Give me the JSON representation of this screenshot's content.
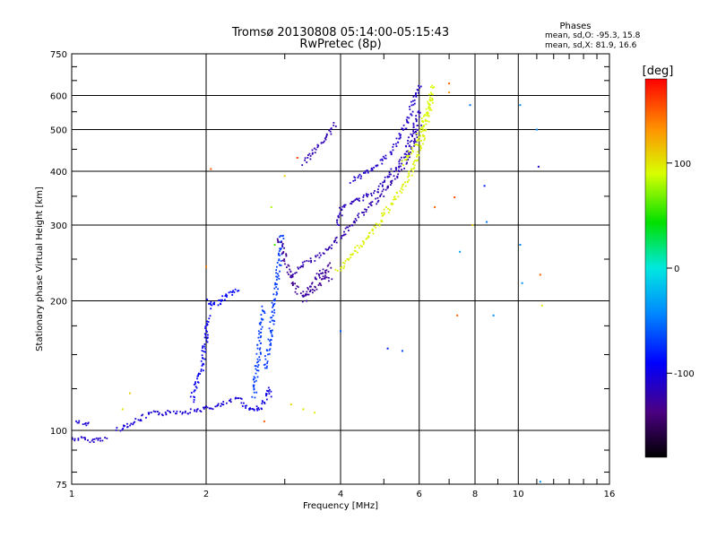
{
  "chart_data": {
    "type": "scatter",
    "title": "Tromsø 20130808 05:14:00-05:15:43",
    "subtitle": "RwPretec (8p)",
    "xlabel": "Frequency [MHz]",
    "ylabel": "Stationary phase Virtual Height [km]",
    "x_scale": "log",
    "y_scale": "log",
    "xlim": [
      1,
      16
    ],
    "ylim": [
      75,
      750
    ],
    "grid": true,
    "x_ticks": [
      1,
      2,
      4,
      6,
      8,
      10,
      16
    ],
    "y_ticks": [
      75,
      100,
      200,
      300,
      400,
      500,
      600,
      750
    ],
    "stats": {
      "title": "Phases",
      "line_o": "mean, sd,O: -95.3, 15.8",
      "line_x": "mean, sd,X: 81.9, 16.6"
    },
    "colorbar": {
      "label": "[deg]",
      "range": [
        -180,
        180
      ],
      "ticks": [
        100,
        0,
        -100
      ]
    },
    "series": [
      {
        "traces": [
          {
            "x": [
              1.0,
              1.05,
              1.1,
              1.15,
              1.2
            ],
            "y": [
              96,
              96,
              95,
              96,
              96
            ],
            "phase": -110
          },
          {
            "x": [
              1.02,
              1.06,
              1.1
            ],
            "y": [
              105,
              104,
              104
            ],
            "phase": -105
          },
          {
            "x": [
              1.25,
              1.3,
              1.35,
              1.4,
              1.45,
              1.5,
              1.6,
              1.7,
              1.8,
              1.9,
              2.0,
              2.1,
              2.2,
              2.3,
              2.4
            ],
            "y": [
              101,
              102,
              104,
              106,
              108,
              110,
              110,
              111,
              111,
              112,
              113,
              114,
              116,
              118,
              121
            ],
            "phase": -105
          },
          {
            "x": [
              2.4,
              2.45,
              2.5,
              2.55,
              2.6,
              2.65,
              2.7,
              2.75,
              2.8
            ],
            "y": [
              116,
              114,
              113,
              112,
              113,
              114,
              118,
              125,
              120
            ],
            "phase": -100
          },
          {
            "x": [
              1.85,
              1.88,
              1.92,
              1.95,
              1.97,
              1.98,
              2.0,
              2.02
            ],
            "y": [
              118,
              125,
              132,
              140,
              150,
              160,
              172,
              185
            ],
            "phase": -95
          },
          {
            "x": [
              2.02,
              2.05,
              2.08,
              2.12,
              2.16,
              2.2,
              2.25,
              2.3,
              2.35
            ],
            "y": [
              200,
              195,
              198,
              197,
              203,
              206,
              209,
              212,
              214
            ],
            "phase": -90
          },
          {
            "x": [
              2.55,
              2.57,
              2.6,
              2.62,
              2.65,
              2.68
            ],
            "y": [
              120,
              132,
              145,
              160,
              178,
              195
            ],
            "phase": -70
          },
          {
            "x": [
              2.7,
              2.75,
              2.8,
              2.85,
              2.9,
              2.95
            ],
            "y": [
              140,
              155,
              180,
              210,
              245,
              290
            ],
            "phase": -70
          },
          {
            "x": [
              2.9,
              3.0,
              3.1,
              3.2,
              3.3,
              3.4,
              3.5,
              3.6,
              3.7,
              3.8
            ],
            "y": [
              280,
              250,
              225,
              210,
              208,
              210,
              215,
              222,
              232,
              245
            ],
            "phase": -130
          },
          {
            "x": [
              3.1,
              3.2,
              3.4,
              3.6,
              3.8,
              4.0,
              4.2,
              4.4,
              4.6,
              4.8,
              5.0,
              5.2,
              5.4,
              5.6,
              5.8,
              6.0
            ],
            "y": [
              230,
              240,
              248,
              258,
              270,
              285,
              300,
              315,
              330,
              345,
              360,
              380,
              400,
              425,
              460,
              520
            ],
            "phase": -120
          },
          {
            "x": [
              3.9,
              4.0,
              4.2,
              4.4,
              4.6,
              4.8,
              5.0,
              5.2,
              5.4,
              5.6,
              5.8,
              6.0
            ],
            "y": [
              300,
              330,
              340,
              345,
              355,
              360,
              380,
              400,
              420,
              450,
              500,
              560
            ],
            "phase": -115
          },
          {
            "x": [
              4.2,
              4.4,
              4.6,
              4.8,
              5.0,
              5.2,
              5.4,
              5.6,
              5.8,
              6.0
            ],
            "y": [
              380,
              390,
              405,
              415,
              430,
              450,
              480,
              520,
              580,
              640
            ],
            "phase": -110
          },
          {
            "x": [
              3.3,
              3.45,
              3.6,
              3.75,
              3.9
            ],
            "y": [
              420,
              440,
              470,
              490,
              520
            ],
            "phase": -118
          },
          {
            "x": [
              3.3,
              3.4,
              3.5,
              3.6,
              3.7,
              3.8
            ],
            "y": [
              200,
              215,
              225,
              235,
              228,
              222
            ],
            "phase": -125
          },
          {
            "x": [
              3.9,
              4.0,
              4.2,
              4.4,
              4.6,
              4.8,
              5.0,
              5.2,
              5.4,
              5.6,
              5.8,
              6.0,
              6.2,
              6.4
            ],
            "y": [
              235,
              240,
              255,
              270,
              285,
              300,
              320,
              340,
              360,
              380,
              410,
              450,
              520,
              600
            ],
            "phase": 95
          },
          {
            "x": [
              5.5,
              5.7,
              5.9,
              6.1,
              6.3,
              6.4
            ],
            "y": [
              420,
              440,
              470,
              520,
              580,
              640
            ],
            "phase": 90
          }
        ]
      },
      {
        "points": [
          {
            "x": 2.05,
            "y": 405,
            "phase": 150
          },
          {
            "x": 2.8,
            "y": 330,
            "phase": 80
          },
          {
            "x": 2.85,
            "y": 270,
            "phase": 60
          },
          {
            "x": 3.0,
            "y": 390,
            "phase": 110
          },
          {
            "x": 3.1,
            "y": 115,
            "phase": 105
          },
          {
            "x": 3.3,
            "y": 112,
            "phase": 100
          },
          {
            "x": 3.5,
            "y": 110,
            "phase": 95
          },
          {
            "x": 3.2,
            "y": 430,
            "phase": 160
          },
          {
            "x": 1.35,
            "y": 122,
            "phase": 110
          },
          {
            "x": 1.3,
            "y": 112,
            "phase": 100
          },
          {
            "x": 4.0,
            "y": 170,
            "phase": -60
          },
          {
            "x": 5.1,
            "y": 155,
            "phase": -80
          },
          {
            "x": 5.5,
            "y": 153,
            "phase": -70
          },
          {
            "x": 6.5,
            "y": 330,
            "phase": 150
          },
          {
            "x": 7.0,
            "y": 640,
            "phase": 150
          },
          {
            "x": 7.2,
            "y": 348,
            "phase": 160
          },
          {
            "x": 7.4,
            "y": 260,
            "phase": -30
          },
          {
            "x": 7.3,
            "y": 185,
            "phase": 150
          },
          {
            "x": 7.8,
            "y": 570,
            "phase": -50
          },
          {
            "x": 7.9,
            "y": 300,
            "phase": 110
          },
          {
            "x": 8.4,
            "y": 370,
            "phase": -80
          },
          {
            "x": 8.5,
            "y": 305,
            "phase": -50
          },
          {
            "x": 8.8,
            "y": 185,
            "phase": -40
          },
          {
            "x": 10.1,
            "y": 570,
            "phase": -40
          },
          {
            "x": 10.1,
            "y": 270,
            "phase": -45
          },
          {
            "x": 10.2,
            "y": 220,
            "phase": -40
          },
          {
            "x": 11.0,
            "y": 500,
            "phase": -40
          },
          {
            "x": 11.1,
            "y": 410,
            "phase": -110
          },
          {
            "x": 11.2,
            "y": 230,
            "phase": 150
          },
          {
            "x": 11.3,
            "y": 195,
            "phase": 100
          },
          {
            "x": 11.2,
            "y": 76,
            "phase": -40
          },
          {
            "x": 7.0,
            "y": 610,
            "phase": 130
          },
          {
            "x": 2.7,
            "y": 105,
            "phase": 150
          },
          {
            "x": 2.0,
            "y": 240,
            "phase": 140
          }
        ]
      }
    ]
  }
}
